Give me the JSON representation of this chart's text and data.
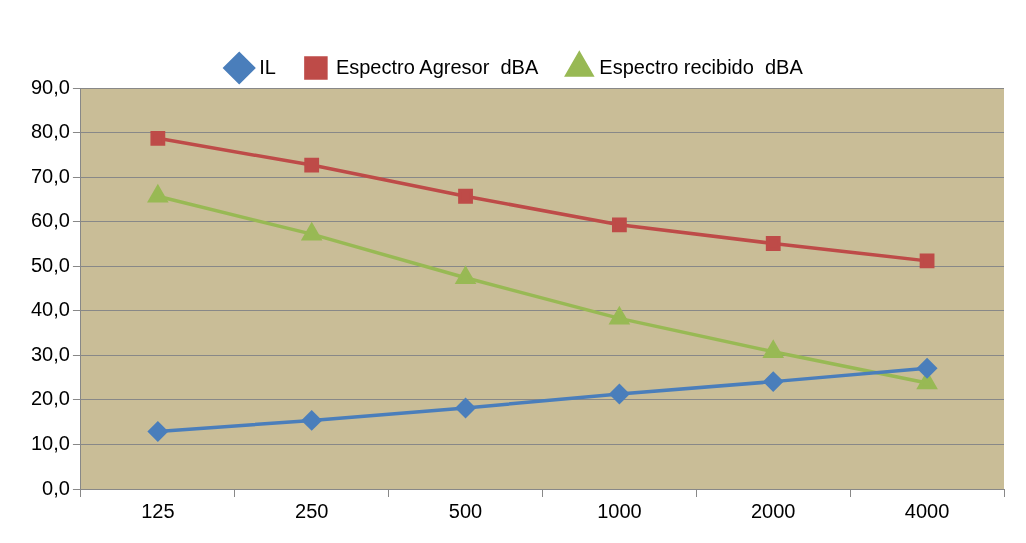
{
  "chart_data": {
    "type": "line",
    "categories": [
      "125",
      "250",
      "500",
      "1000",
      "2000",
      "4000"
    ],
    "series": [
      {
        "name": "IL",
        "color": "#4a7ebb",
        "marker": "diamond",
        "values": [
          12.9,
          15.4,
          18.2,
          21.3,
          24.1,
          27.1
        ]
      },
      {
        "name": "Espectro Agresor  dBA",
        "color": "#be4b48",
        "marker": "square",
        "values": [
          78.7,
          72.7,
          65.7,
          59.3,
          55.1,
          51.2
        ]
      },
      {
        "name": "Espectro recibido  dBA",
        "color": "#98b954",
        "marker": "triangle",
        "values": [
          65.7,
          57.2,
          47.4,
          38.3,
          30.8,
          23.8
        ]
      }
    ],
    "ylim": [
      0,
      90
    ],
    "yticks": [
      {
        "value": 0,
        "label": "0,0"
      },
      {
        "value": 10,
        "label": "10,0"
      },
      {
        "value": 20,
        "label": "20,0"
      },
      {
        "value": 30,
        "label": "30,0"
      },
      {
        "value": 40,
        "label": "40,0"
      },
      {
        "value": 50,
        "label": "50,0"
      },
      {
        "value": 60,
        "label": "60,0"
      },
      {
        "value": 70,
        "label": "70,0"
      },
      {
        "value": 80,
        "label": "80,0"
      },
      {
        "value": 90,
        "label": "90,0"
      }
    ],
    "grid": "y",
    "legend": "top",
    "line_style": "solid"
  }
}
